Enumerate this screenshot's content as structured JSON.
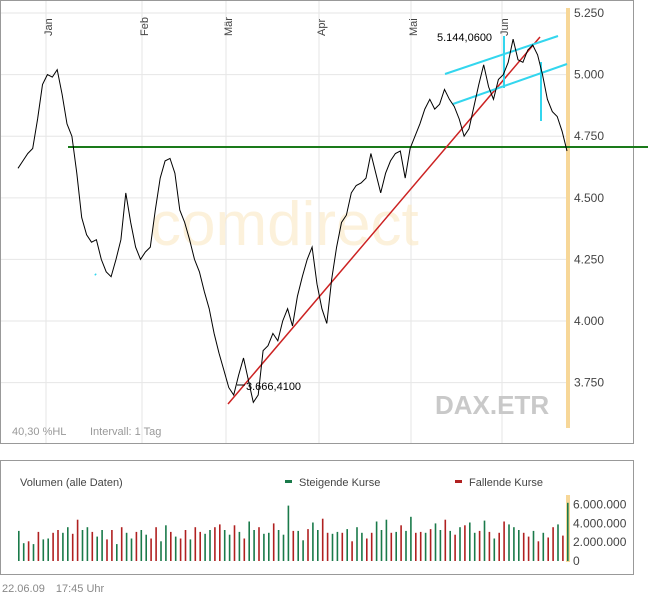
{
  "chart_data": [
    {
      "type": "line",
      "instrument": "DAX.ETR",
      "watermark": "comdirect",
      "x_ticks": [
        "Jan",
        "Feb",
        "Mär",
        "Apr",
        "Mai",
        "Jun"
      ],
      "y_ticks": [
        "5.250",
        "5.000",
        "4.750",
        "4.500",
        "4.250",
        "4.000",
        "3.750"
      ],
      "ylim": [
        3570,
        5250
      ],
      "grid": true,
      "series": [
        {
          "values": [
            4620,
            4650,
            4680,
            4700,
            4820,
            4960,
            5000,
            4990,
            5020,
            4920,
            4800,
            4750,
            4600,
            4420,
            4350,
            4320,
            4330,
            4250,
            4200,
            4180,
            4250,
            4330,
            4520,
            4400,
            4300,
            4250,
            4280,
            4300,
            4450,
            4580,
            4650,
            4660,
            4600,
            4450,
            4400,
            4330,
            4250,
            4200,
            4120,
            4050,
            3950,
            3870,
            3800,
            3730,
            3700,
            3780,
            3850,
            3760,
            3670,
            3700,
            3880,
            3900,
            3950,
            3920,
            4000,
            4050,
            3980,
            4100,
            4180,
            4250,
            4300,
            4150,
            4050,
            3990,
            4170,
            4300,
            4400,
            4430,
            4520,
            4550,
            4560,
            4580,
            4680,
            4600,
            4520,
            4600,
            4650,
            4680,
            4690,
            4580,
            4700,
            4750,
            4800,
            4860,
            4900,
            4860,
            4880,
            4940,
            4900,
            4870,
            4820,
            4750,
            4780,
            4870,
            4960,
            5040,
            4950,
            4900,
            4980,
            5000,
            5050,
            5144,
            5060,
            5050,
            5100,
            5120,
            5080,
            5000,
            4900,
            4850,
            4830,
            4770,
            4690
          ]
        }
      ],
      "annotations": {
        "low_label": "3.666,4100",
        "high_label": "5.144,0600",
        "volatility_label": "40,30 %HL",
        "interval_label": "Intervall: 1 Tag"
      },
      "colors": {
        "price": "#000000",
        "support": "#1a7a1a",
        "trend": "#cc2222",
        "channel": "#33d6ee",
        "last_bar": "#f7d798"
      }
    },
    {
      "type": "bar",
      "title": "Volumen (alle Daten)",
      "legend": [
        "Steigende Kurse",
        "Fallende Kurse"
      ],
      "legend_placement": "top",
      "y_ticks": [
        "6.000.000",
        "4.000.000",
        "2.000.000",
        "0"
      ],
      "ylim": [
        0,
        6600000
      ],
      "values": [
        3200000,
        1900000,
        2100000,
        1800000,
        3100000,
        2300000,
        2400000,
        3000000,
        3300000,
        3000000,
        3600000,
        2900000,
        4400000,
        3300000,
        3600000,
        3100000,
        2600000,
        3300000,
        2300000,
        3300000,
        1800000,
        3600000,
        3000000,
        2400000,
        3100000,
        3300000,
        2800000,
        2400000,
        3600000,
        2100000,
        3800000,
        3100000,
        2600000,
        2400000,
        3300000,
        2300000,
        3600000,
        3100000,
        2900000,
        3300000,
        3600000,
        3900000,
        3300000,
        2800000,
        3800000,
        3100000,
        2400000,
        4200000,
        3300000,
        3600000,
        2900000,
        3000000,
        4000000,
        3300000,
        2800000,
        5900000,
        3200000,
        3200000,
        2200000,
        3400000,
        4100000,
        3300000,
        4500000,
        3000000,
        2900000,
        3100000,
        3000000,
        3400000,
        2100000,
        3600000,
        3000000,
        2400000,
        3000000,
        4200000,
        3300000,
        4400000,
        3000000,
        3100000,
        3800000,
        3200000,
        4700000,
        3000000,
        3100000,
        3000000,
        3400000,
        4000000,
        3300000,
        4400000,
        3200000,
        2800000,
        3600000,
        3800000,
        4100000,
        3000000,
        3200000,
        4300000,
        3100000,
        2400000,
        3000000,
        4200000,
        3900000,
        3600000,
        3300000,
        3000000,
        2600000,
        3200000,
        2100000,
        3000000,
        2500000,
        3600000,
        3900000,
        2700000,
        6200000
      ],
      "rising": [
        1,
        1,
        0,
        1,
        0,
        1,
        1,
        0,
        0,
        1,
        1,
        0,
        0,
        1,
        1,
        0,
        1,
        1,
        0,
        0,
        1,
        0,
        1,
        1,
        0,
        1,
        1,
        0,
        0,
        1,
        1,
        0,
        1,
        0,
        0,
        1,
        0,
        0,
        1,
        1,
        0,
        0,
        1,
        1,
        0,
        1,
        0,
        1,
        1,
        0,
        1,
        1,
        0,
        1,
        1,
        1,
        0,
        1,
        1,
        0,
        1,
        1,
        0,
        0,
        1,
        1,
        0,
        1,
        0,
        1,
        1,
        0,
        0,
        1,
        1,
        1,
        0,
        1,
        0,
        1,
        1,
        0,
        0,
        1,
        0,
        1,
        1,
        0,
        1,
        0,
        1,
        0,
        1,
        1,
        0,
        1,
        0,
        1,
        0,
        0,
        1,
        1,
        1,
        0,
        0,
        1,
        0,
        1,
        0,
        0,
        1,
        0,
        1
      ]
    }
  ],
  "footer": {
    "date": "22.06.09",
    "time": "17:45 Uhr"
  }
}
